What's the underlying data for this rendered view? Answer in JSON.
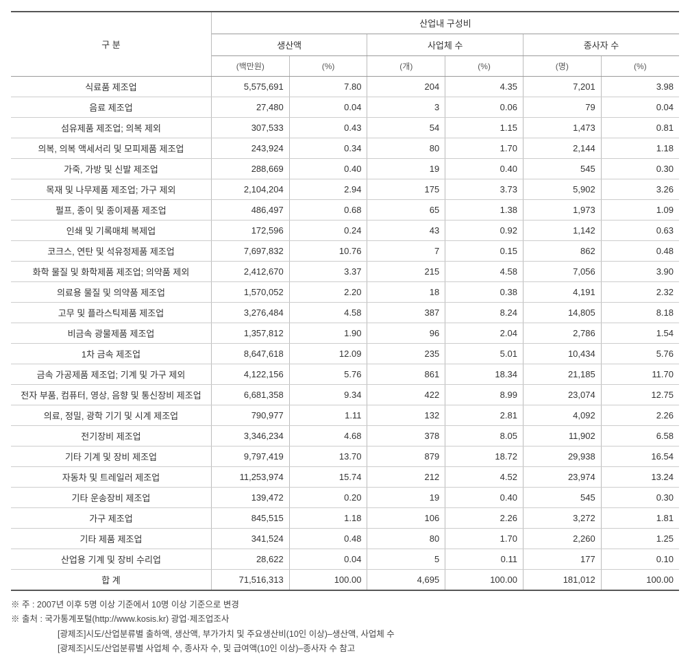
{
  "table": {
    "header": {
      "category": "구 분",
      "group_title": "산업내 구성비",
      "groups": [
        {
          "title": "생산액",
          "sub_value": "(백만원)",
          "sub_pct": "(%)"
        },
        {
          "title": "사업체 수",
          "sub_value": "(개)",
          "sub_pct": "(%)"
        },
        {
          "title": "종사자 수",
          "sub_value": "(명)",
          "sub_pct": "(%)"
        }
      ]
    },
    "rows": [
      {
        "label": "식료품 제조업",
        "prod_val": "5,575,691",
        "prod_pct": "7.80",
        "biz_val": "204",
        "biz_pct": "4.35",
        "emp_val": "7,201",
        "emp_pct": "3.98"
      },
      {
        "label": "음료 제조업",
        "prod_val": "27,480",
        "prod_pct": "0.04",
        "biz_val": "3",
        "biz_pct": "0.06",
        "emp_val": "79",
        "emp_pct": "0.04"
      },
      {
        "label": "섬유제품 제조업; 의복 제외",
        "prod_val": "307,533",
        "prod_pct": "0.43",
        "biz_val": "54",
        "biz_pct": "1.15",
        "emp_val": "1,473",
        "emp_pct": "0.81"
      },
      {
        "label": "의복, 의복 액세서리 및 모피제품 제조업",
        "prod_val": "243,924",
        "prod_pct": "0.34",
        "biz_val": "80",
        "biz_pct": "1.70",
        "emp_val": "2,144",
        "emp_pct": "1.18"
      },
      {
        "label": "가죽, 가방 및 신발 제조업",
        "prod_val": "288,669",
        "prod_pct": "0.40",
        "biz_val": "19",
        "biz_pct": "0.40",
        "emp_val": "545",
        "emp_pct": "0.30"
      },
      {
        "label": "목재 및 나무제품 제조업; 가구 제외",
        "prod_val": "2,104,204",
        "prod_pct": "2.94",
        "biz_val": "175",
        "biz_pct": "3.73",
        "emp_val": "5,902",
        "emp_pct": "3.26"
      },
      {
        "label": "펄프, 종이 및 종이제품 제조업",
        "prod_val": "486,497",
        "prod_pct": "0.68",
        "biz_val": "65",
        "biz_pct": "1.38",
        "emp_val": "1,973",
        "emp_pct": "1.09"
      },
      {
        "label": "인쇄 및 기록매체 복제업",
        "prod_val": "172,596",
        "prod_pct": "0.24",
        "biz_val": "43",
        "biz_pct": "0.92",
        "emp_val": "1,142",
        "emp_pct": "0.63"
      },
      {
        "label": "코크스, 연탄 및 석유정제품 제조업",
        "prod_val": "7,697,832",
        "prod_pct": "10.76",
        "biz_val": "7",
        "biz_pct": "0.15",
        "emp_val": "862",
        "emp_pct": "0.48"
      },
      {
        "label": "화학 물질 및 화학제품 제조업; 의약품 제외",
        "prod_val": "2,412,670",
        "prod_pct": "3.37",
        "biz_val": "215",
        "biz_pct": "4.58",
        "emp_val": "7,056",
        "emp_pct": "3.90"
      },
      {
        "label": "의료용 물질 및 의약품 제조업",
        "prod_val": "1,570,052",
        "prod_pct": "2.20",
        "biz_val": "18",
        "biz_pct": "0.38",
        "emp_val": "4,191",
        "emp_pct": "2.32"
      },
      {
        "label": "고무 및 플라스틱제품 제조업",
        "prod_val": "3,276,484",
        "prod_pct": "4.58",
        "biz_val": "387",
        "biz_pct": "8.24",
        "emp_val": "14,805",
        "emp_pct": "8.18"
      },
      {
        "label": "비금속 광물제품 제조업",
        "prod_val": "1,357,812",
        "prod_pct": "1.90",
        "biz_val": "96",
        "biz_pct": "2.04",
        "emp_val": "2,786",
        "emp_pct": "1.54"
      },
      {
        "label": "1차 금속 제조업",
        "prod_val": "8,647,618",
        "prod_pct": "12.09",
        "biz_val": "235",
        "biz_pct": "5.01",
        "emp_val": "10,434",
        "emp_pct": "5.76"
      },
      {
        "label": "금속 가공제품 제조업; 기계 및 가구 제외",
        "prod_val": "4,122,156",
        "prod_pct": "5.76",
        "biz_val": "861",
        "biz_pct": "18.34",
        "emp_val": "21,185",
        "emp_pct": "11.70"
      },
      {
        "label": "전자 부품, 컴퓨터, 영상, 음향 및 통신장비 제조업",
        "prod_val": "6,681,358",
        "prod_pct": "9.34",
        "biz_val": "422",
        "biz_pct": "8.99",
        "emp_val": "23,074",
        "emp_pct": "12.75"
      },
      {
        "label": "의료, 정밀, 광학 기기 및 시계 제조업",
        "prod_val": "790,977",
        "prod_pct": "1.11",
        "biz_val": "132",
        "biz_pct": "2.81",
        "emp_val": "4,092",
        "emp_pct": "2.26"
      },
      {
        "label": "전기장비 제조업",
        "prod_val": "3,346,234",
        "prod_pct": "4.68",
        "biz_val": "378",
        "biz_pct": "8.05",
        "emp_val": "11,902",
        "emp_pct": "6.58"
      },
      {
        "label": "기타 기계 및 장비 제조업",
        "prod_val": "9,797,419",
        "prod_pct": "13.70",
        "biz_val": "879",
        "biz_pct": "18.72",
        "emp_val": "29,938",
        "emp_pct": "16.54"
      },
      {
        "label": "자동차 및 트레일러 제조업",
        "prod_val": "11,253,974",
        "prod_pct": "15.74",
        "biz_val": "212",
        "biz_pct": "4.52",
        "emp_val": "23,974",
        "emp_pct": "13.24"
      },
      {
        "label": "기타 운송장비 제조업",
        "prod_val": "139,472",
        "prod_pct": "0.20",
        "biz_val": "19",
        "biz_pct": "0.40",
        "emp_val": "545",
        "emp_pct": "0.30"
      },
      {
        "label": "가구 제조업",
        "prod_val": "845,515",
        "prod_pct": "1.18",
        "biz_val": "106",
        "biz_pct": "2.26",
        "emp_val": "3,272",
        "emp_pct": "1.81"
      },
      {
        "label": "기타 제품 제조업",
        "prod_val": "341,524",
        "prod_pct": "0.48",
        "biz_val": "80",
        "biz_pct": "1.70",
        "emp_val": "2,260",
        "emp_pct": "1.25"
      },
      {
        "label": "산업용 기계 및 장비 수리업",
        "prod_val": "28,622",
        "prod_pct": "0.04",
        "biz_val": "5",
        "biz_pct": "0.11",
        "emp_val": "177",
        "emp_pct": "0.10"
      }
    ],
    "total": {
      "label": "합 계",
      "prod_val": "71,516,313",
      "prod_pct": "100.00",
      "biz_val": "4,695",
      "biz_pct": "100.00",
      "emp_val": "181,012",
      "emp_pct": "100.00"
    }
  },
  "notes": {
    "line1": "※ 주  : 2007년 이후 5명 이상 기준에서 10명 이상 기준으로 변경",
    "line2": "※ 출처 : 국가통계포털(http://www.kosis.kr) 광업·제조업조사",
    "line3": "[광제조]시도/산업분류별 출하액, 생산액, 부가가치 및 주요생산비(10인 이상)–생산액, 사업체 수",
    "line4": "[광제조]시도/산업분류별 사업체 수, 종사자 수, 및 급여액(10인 이상)–종사자 수 참고"
  },
  "style": {
    "border_top_color": "#555555",
    "border_row_color": "#cccccc",
    "border_col_color": "#bbbbbb",
    "text_color": "#333333",
    "note_color": "#444444",
    "background": "#ffffff",
    "font_size_body": 13,
    "font_size_note": 12.5,
    "font_size_subhdr": 12
  }
}
